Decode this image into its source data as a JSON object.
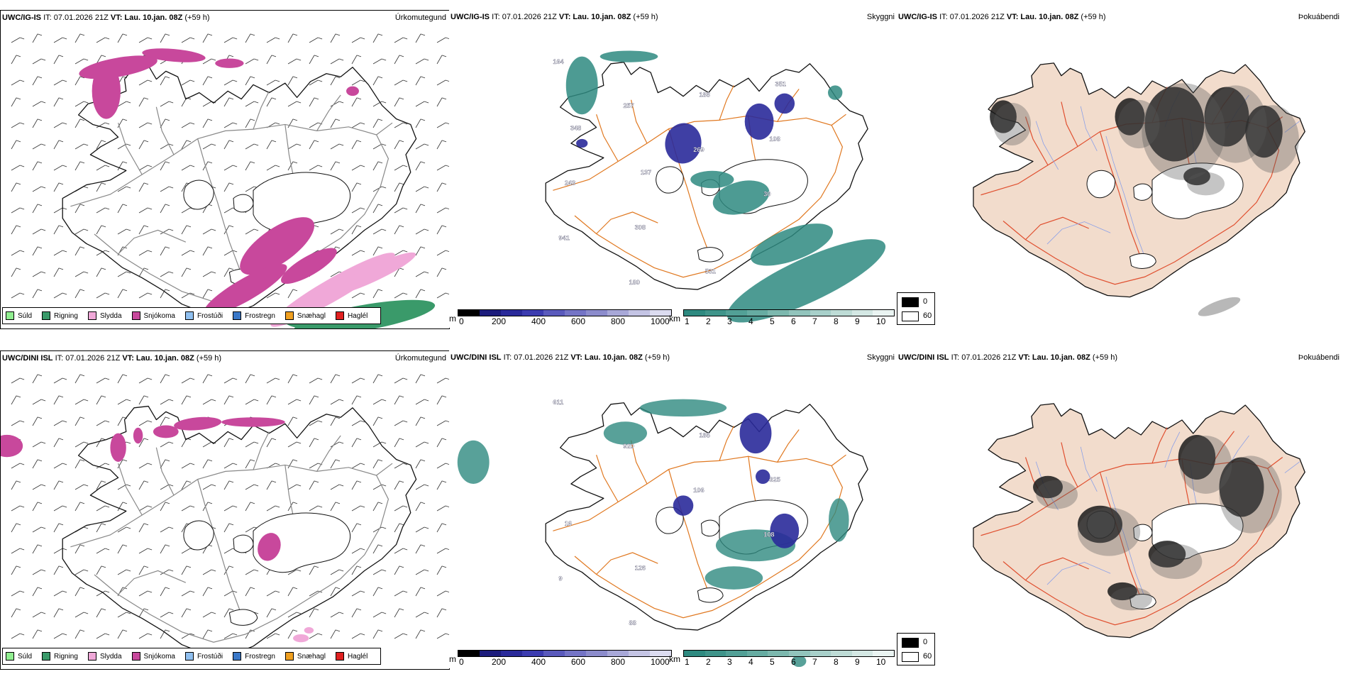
{
  "rows": [
    {
      "model": "UWC/IG-IS",
      "it": "IT: 07.01.2026 21Z",
      "vt_label": "VT:",
      "vt_value": "Lau. 10.jan. 08Z",
      "lead": "(+59 h)"
    },
    {
      "model": "UWC/DINI ISL",
      "it": "IT: 07.01.2026 21Z",
      "vt_label": "VT:",
      "vt_value": "Lau. 10.jan. 08Z",
      "lead": "(+59 h)"
    }
  ],
  "panel_titles": {
    "precip": "Úrkomutegund",
    "cloud": "Skyggni",
    "fog": "Þokuábendi"
  },
  "precip_legend": [
    {
      "label": "Súld",
      "color": "#90ee90"
    },
    {
      "label": "Rigning",
      "color": "#3a9a6a"
    },
    {
      "label": "Slydda",
      "color": "#f0a8d8"
    },
    {
      "label": "Snjókoma",
      "color": "#c8489c"
    },
    {
      "label": "Frostúði",
      "color": "#90c0f0"
    },
    {
      "label": "Frostregn",
      "color": "#3a78c8"
    },
    {
      "label": "Snæhagl",
      "color": "#f0a020"
    },
    {
      "label": "Haglél",
      "color": "#e02020"
    }
  ],
  "cloud_base_scale": {
    "unit": "m",
    "ticks": [
      "0",
      "200",
      "400",
      "600",
      "800",
      "1000"
    ],
    "colors": [
      "#000000",
      "#1c1c7c",
      "#2a2a9a",
      "#3c3cb0",
      "#5a5abc",
      "#7474c6",
      "#8c8ccc",
      "#a8a8d8",
      "#c4c4e4",
      "#dcdcf0"
    ]
  },
  "visibility_scale": {
    "unit": "km",
    "ticks": [
      "1",
      "2",
      "3",
      "4",
      "5",
      "6",
      "7",
      "8",
      "9",
      "10"
    ],
    "colors": [
      "#2e8a80",
      "#3f948a",
      "#52a096",
      "#66aca2",
      "#7cb8ae",
      "#92c4bc",
      "#a8d0ca",
      "#bedcd6",
      "#d4e8e4",
      "#eaf4f2"
    ]
  },
  "fog_scale": {
    "high": "0",
    "low": "60"
  },
  "cloud_labels_top": [
    "164",
    "257",
    "269",
    "30",
    "941",
    "180",
    "188",
    "108",
    "243",
    "308",
    "531",
    "351",
    "348",
    "137"
  ],
  "cloud_labels_bottom": [
    "611",
    "920",
    "106",
    "108",
    "9",
    "88",
    "185",
    "325",
    "16",
    "126"
  ],
  "colors": {
    "coast": "#111111",
    "roads": "#e07820",
    "roads_fog": "#e05030",
    "land_fog": "#f2dccc",
    "rivers": "#8aa0e8",
    "snow": "#c8489c",
    "sleet": "#f0a8d8",
    "rain": "#3a9a6a",
    "teal": "#2e8a80",
    "low_cloud": "#2a2a9a"
  }
}
